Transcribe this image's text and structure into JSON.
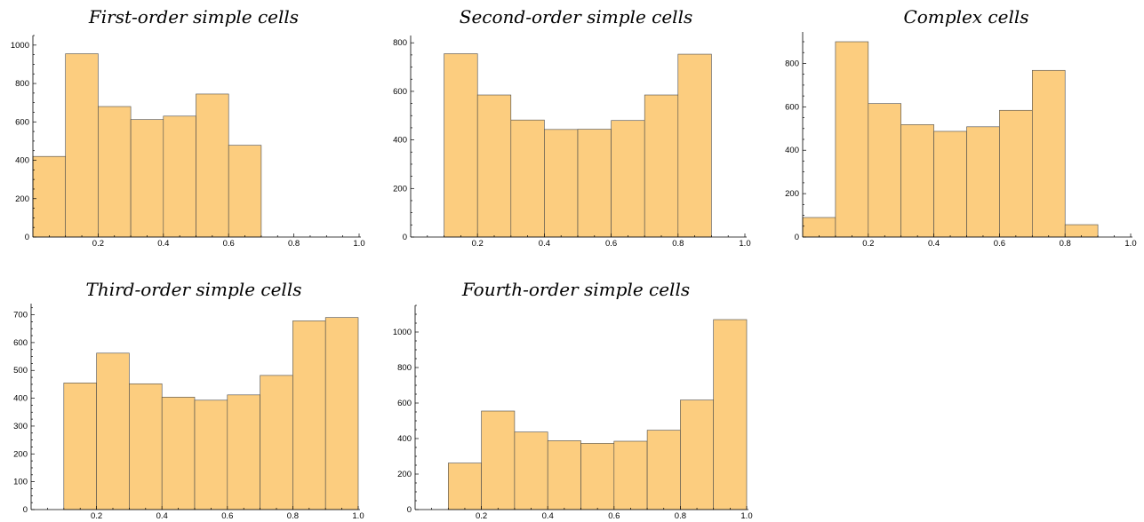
{
  "colors": {
    "bar_fill": "#FCCD7F",
    "bar_stroke": "#4a4a4a",
    "axis": "#000000"
  },
  "chart_data": [
    {
      "type": "bar",
      "title": "First-order simple cells",
      "xlim": [
        0,
        1
      ],
      "ylim": [
        0,
        1050
      ],
      "xticks": [
        "0.2",
        "0.4",
        "0.6",
        "0.8",
        "1.0"
      ],
      "yticks": [
        "0",
        "200",
        "400",
        "600",
        "800",
        "1000"
      ],
      "bins": [
        [
          0.0,
          0.1
        ],
        [
          0.1,
          0.2
        ],
        [
          0.2,
          0.3
        ],
        [
          0.3,
          0.4
        ],
        [
          0.4,
          0.5
        ],
        [
          0.5,
          0.6
        ],
        [
          0.6,
          0.7
        ],
        [
          0.7,
          0.8
        ],
        [
          0.8,
          0.9
        ],
        [
          0.9,
          1.0
        ]
      ],
      "values": [
        420,
        955,
        680,
        612,
        630,
        745,
        478,
        0,
        0,
        0
      ]
    },
    {
      "type": "bar",
      "title": "Second-order simple cells",
      "xlim": [
        0,
        1
      ],
      "ylim": [
        0,
        830
      ],
      "xticks": [
        "0.2",
        "0.4",
        "0.6",
        "0.8",
        "1.0"
      ],
      "yticks": [
        "0",
        "200",
        "400",
        "600",
        "800"
      ],
      "bins": [
        [
          0.0,
          0.1
        ],
        [
          0.1,
          0.2
        ],
        [
          0.2,
          0.3
        ],
        [
          0.3,
          0.4
        ],
        [
          0.4,
          0.5
        ],
        [
          0.5,
          0.6
        ],
        [
          0.6,
          0.7
        ],
        [
          0.7,
          0.8
        ],
        [
          0.8,
          0.9
        ],
        [
          0.9,
          1.0
        ]
      ],
      "values": [
        0,
        755,
        585,
        482,
        443,
        444,
        480,
        585,
        753,
        0
      ]
    },
    {
      "type": "bar",
      "title": "Complex cells",
      "xlim": [
        0,
        1
      ],
      "ylim": [
        0,
        945
      ],
      "xticks": [
        "0.2",
        "0.4",
        "0.6",
        "0.8",
        "1.0"
      ],
      "yticks": [
        "0",
        "200",
        "400",
        "600",
        "800"
      ],
      "bins": [
        [
          0.0,
          0.1
        ],
        [
          0.1,
          0.2
        ],
        [
          0.2,
          0.3
        ],
        [
          0.3,
          0.4
        ],
        [
          0.4,
          0.5
        ],
        [
          0.5,
          0.6
        ],
        [
          0.6,
          0.7
        ],
        [
          0.7,
          0.8
        ],
        [
          0.8,
          0.9
        ],
        [
          0.9,
          1.0
        ]
      ],
      "values": [
        90,
        900,
        615,
        518,
        487,
        508,
        584,
        768,
        57,
        0
      ]
    },
    {
      "type": "bar",
      "title": "Third-order simple cells",
      "xlim": [
        0,
        1
      ],
      "ylim": [
        0,
        740
      ],
      "xticks": [
        "0.2",
        "0.4",
        "0.6",
        "0.8",
        "1.0"
      ],
      "yticks": [
        "0",
        "100",
        "200",
        "300",
        "400",
        "500",
        "600",
        "700"
      ],
      "bins": [
        [
          0.0,
          0.1
        ],
        [
          0.1,
          0.2
        ],
        [
          0.2,
          0.3
        ],
        [
          0.3,
          0.4
        ],
        [
          0.4,
          0.5
        ],
        [
          0.5,
          0.6
        ],
        [
          0.6,
          0.7
        ],
        [
          0.7,
          0.8
        ],
        [
          0.8,
          0.9
        ],
        [
          0.9,
          1.0
        ]
      ],
      "values": [
        0,
        455,
        562,
        452,
        404,
        393,
        412,
        482,
        678,
        690
      ]
    },
    {
      "type": "bar",
      "title": "Fourth-order simple cells",
      "xlim": [
        0,
        1
      ],
      "ylim": [
        0,
        1150
      ],
      "xticks": [
        "0.2",
        "0.4",
        "0.6",
        "0.8",
        "1.0"
      ],
      "yticks": [
        "0",
        "200",
        "400",
        "600",
        "800",
        "1000"
      ],
      "bins": [
        [
          0.0,
          0.1
        ],
        [
          0.1,
          0.2
        ],
        [
          0.2,
          0.3
        ],
        [
          0.3,
          0.4
        ],
        [
          0.4,
          0.5
        ],
        [
          0.5,
          0.6
        ],
        [
          0.6,
          0.7
        ],
        [
          0.7,
          0.8
        ],
        [
          0.8,
          0.9
        ],
        [
          0.9,
          1.0
        ]
      ],
      "values": [
        0,
        262,
        555,
        437,
        388,
        373,
        385,
        447,
        617,
        1070
      ]
    }
  ]
}
